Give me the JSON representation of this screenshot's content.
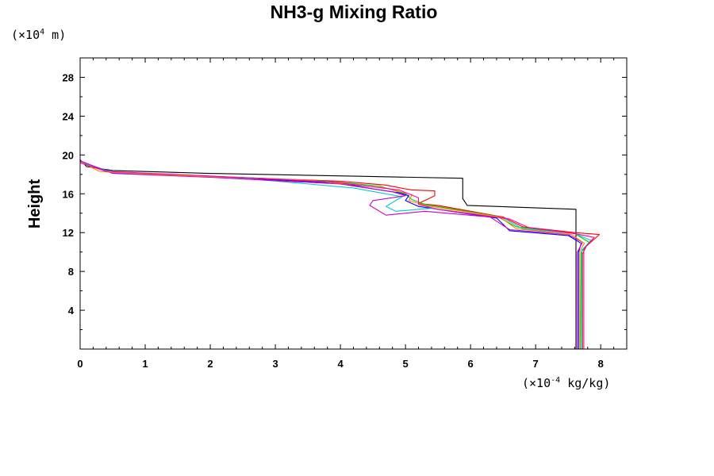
{
  "chart_data": {
    "type": "line",
    "title": "NH3-g Mixing Ratio",
    "ylabel": "Height",
    "y_unit": {
      "prefix": "(×10",
      "exponent": "4",
      "suffix": " m)"
    },
    "x_unit": {
      "prefix": "(×10",
      "exponent": "-4",
      "suffix": " kg/kg)"
    },
    "xlim": [
      0,
      8.4
    ],
    "ylim": [
      0,
      30
    ],
    "x_ticks": [
      "0",
      "1",
      "2",
      "3",
      "4",
      "5",
      "6",
      "7",
      "8"
    ],
    "y_ticks": [
      "4",
      "8",
      "12",
      "16",
      "20",
      "24",
      "28"
    ],
    "grid": false,
    "series": [
      {
        "color": "#000000",
        "points": [
          [
            7.62,
            0
          ],
          [
            7.62,
            14.4
          ],
          [
            5.95,
            14.8
          ],
          [
            5.88,
            15.5
          ],
          [
            5.88,
            17.6
          ],
          [
            4.3,
            17.8
          ],
          [
            2.0,
            18.1
          ],
          [
            0.5,
            18.4
          ],
          [
            0.1,
            18.8
          ],
          [
            0.0,
            19.5
          ]
        ]
      },
      {
        "color": "#ff0000",
        "points": [
          [
            7.72,
            0
          ],
          [
            7.72,
            9.8
          ],
          [
            7.78,
            10.6
          ],
          [
            7.98,
            11.8
          ],
          [
            7.6,
            12.0
          ],
          [
            6.8,
            12.6
          ],
          [
            6.5,
            13.6
          ],
          [
            5.5,
            14.8
          ],
          [
            5.2,
            15.0
          ],
          [
            5.45,
            15.8
          ],
          [
            5.45,
            16.3
          ],
          [
            5.1,
            16.4
          ],
          [
            5.0,
            16.5
          ],
          [
            4.7,
            16.9
          ],
          [
            4.0,
            17.3
          ],
          [
            2.0,
            17.8
          ],
          [
            0.5,
            18.2
          ],
          [
            0.0,
            19.3
          ]
        ]
      },
      {
        "color": "#00cc00",
        "points": [
          [
            7.69,
            0
          ],
          [
            7.7,
            10.0
          ],
          [
            7.82,
            11.0
          ],
          [
            7.6,
            11.9
          ],
          [
            6.7,
            12.6
          ],
          [
            6.4,
            13.7
          ],
          [
            5.3,
            14.9
          ],
          [
            5.1,
            15.4
          ],
          [
            5.0,
            16.0
          ],
          [
            4.6,
            16.8
          ],
          [
            3.8,
            17.3
          ],
          [
            2.0,
            17.8
          ],
          [
            0.5,
            18.2
          ],
          [
            0.0,
            19.3
          ]
        ]
      },
      {
        "color": "#0000ff",
        "points": [
          [
            7.66,
            0
          ],
          [
            7.66,
            10.0
          ],
          [
            7.7,
            10.9
          ],
          [
            7.5,
            11.7
          ],
          [
            6.6,
            12.2
          ],
          [
            6.4,
            13.5
          ],
          [
            5.2,
            14.7
          ],
          [
            5.0,
            15.3
          ],
          [
            5.05,
            15.8
          ],
          [
            4.9,
            16.1
          ],
          [
            4.5,
            16.5
          ],
          [
            4.0,
            17.1
          ],
          [
            2.5,
            17.6
          ],
          [
            0.5,
            18.2
          ],
          [
            0.0,
            19.3
          ]
        ]
      },
      {
        "color": "#00cccc",
        "points": [
          [
            7.71,
            0
          ],
          [
            7.71,
            10.2
          ],
          [
            7.85,
            11.2
          ],
          [
            7.6,
            11.9
          ],
          [
            6.8,
            12.4
          ],
          [
            6.5,
            13.5
          ],
          [
            5.4,
            14.5
          ],
          [
            4.85,
            14.2
          ],
          [
            4.7,
            14.7
          ],
          [
            4.95,
            15.7
          ],
          [
            4.7,
            16.0
          ],
          [
            4.2,
            16.6
          ],
          [
            2.5,
            17.6
          ],
          [
            0.5,
            18.2
          ],
          [
            0.0,
            19.3
          ]
        ]
      },
      {
        "color": "#cc00cc",
        "points": [
          [
            7.64,
            0
          ],
          [
            7.64,
            10.0
          ],
          [
            7.72,
            11.0
          ],
          [
            7.5,
            11.8
          ],
          [
            6.6,
            12.3
          ],
          [
            6.3,
            13.6
          ],
          [
            5.3,
            14.2
          ],
          [
            4.7,
            13.8
          ],
          [
            4.45,
            14.8
          ],
          [
            4.5,
            15.3
          ],
          [
            5.0,
            15.8
          ],
          [
            4.8,
            16.2
          ],
          [
            4.0,
            17.0
          ],
          [
            2.0,
            17.7
          ],
          [
            0.5,
            18.1
          ],
          [
            0.0,
            19.4
          ]
        ]
      },
      {
        "color": "#ff8800",
        "points": [
          [
            7.68,
            0
          ],
          [
            7.68,
            10.1
          ],
          [
            7.75,
            10.9
          ],
          [
            7.55,
            11.8
          ],
          [
            6.7,
            12.4
          ],
          [
            6.45,
            13.6
          ],
          [
            5.3,
            14.8
          ],
          [
            5.05,
            15.3
          ],
          [
            5.1,
            15.9
          ],
          [
            4.7,
            16.6
          ],
          [
            3.5,
            17.4
          ],
          [
            1.5,
            17.9
          ],
          [
            0.3,
            18.3
          ],
          [
            0.0,
            19.3
          ]
        ]
      },
      {
        "color": "#ff00aa",
        "points": [
          [
            7.74,
            0
          ],
          [
            7.74,
            10.3
          ],
          [
            7.9,
            11.5
          ],
          [
            7.6,
            11.9
          ],
          [
            6.9,
            12.5
          ],
          [
            6.6,
            13.4
          ],
          [
            5.5,
            14.4
          ],
          [
            5.2,
            14.9
          ],
          [
            5.2,
            15.6
          ],
          [
            4.9,
            16.4
          ],
          [
            3.9,
            17.2
          ],
          [
            1.8,
            17.9
          ],
          [
            0.4,
            18.3
          ],
          [
            0.0,
            19.2
          ]
        ]
      }
    ]
  }
}
